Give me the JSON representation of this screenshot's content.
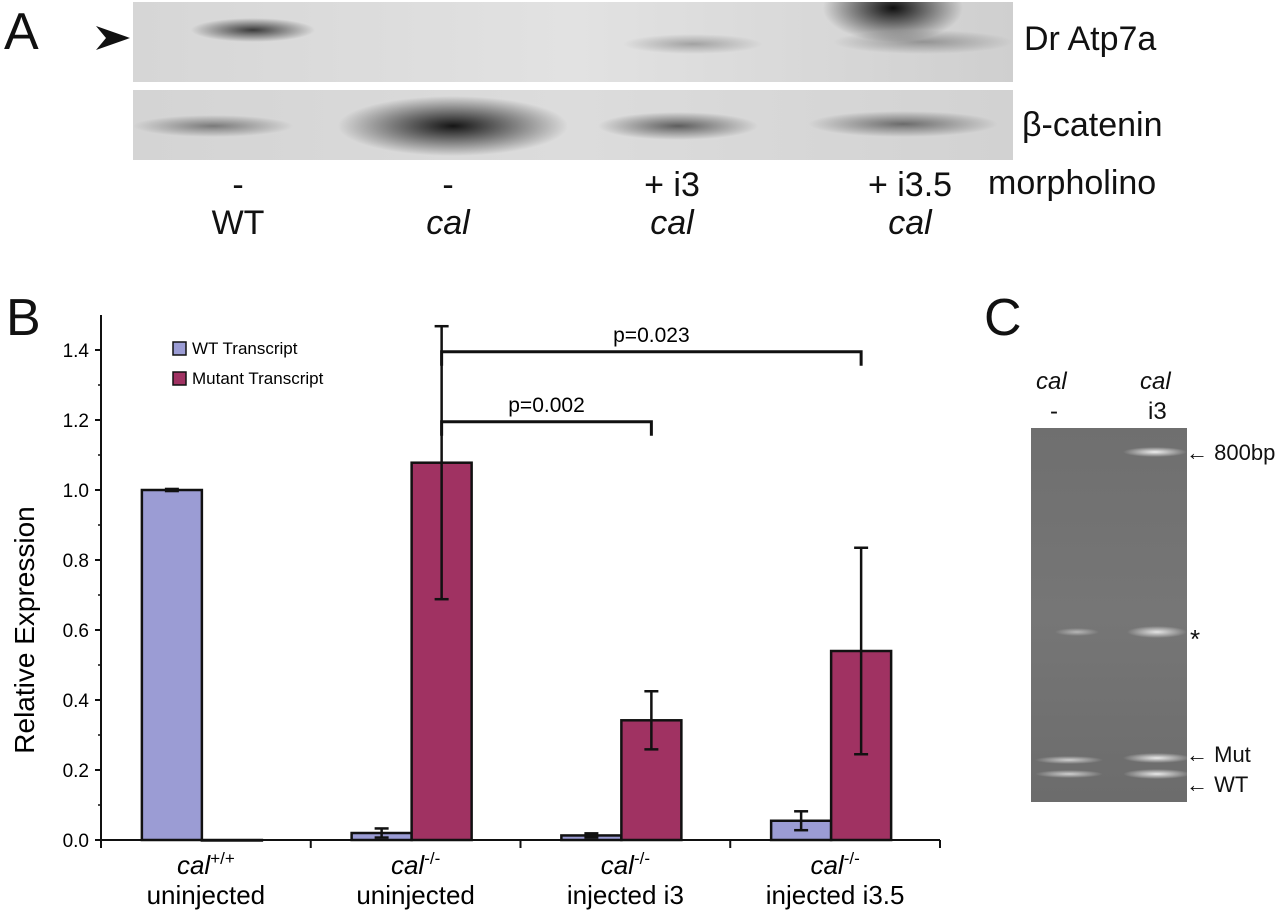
{
  "panels": {
    "a": "A",
    "b": "B",
    "c": "C"
  },
  "panel_a": {
    "blot_labels": [
      "Dr Atp7a",
      "β-catenin"
    ],
    "morpholino_label": "morpholino",
    "lanes": [
      {
        "morpholino": "-",
        "genotype": "WT"
      },
      {
        "morpholino": "-",
        "genotype": "cal"
      },
      {
        "morpholino": "+ i3",
        "genotype": "cal"
      },
      {
        "morpholino": "+ i3.5",
        "genotype": "cal"
      }
    ]
  },
  "panel_c": {
    "lanes": [
      {
        "genotype": "cal",
        "treatment": "-"
      },
      {
        "genotype": "cal",
        "treatment": "i3"
      }
    ],
    "markers": [
      "800bp",
      "*",
      "Mut",
      "WT"
    ]
  },
  "chart_data": {
    "type": "bar",
    "ylabel": "Relative Expression",
    "ylim": [
      0,
      1.5
    ],
    "yticks": [
      "0.0",
      "0.2",
      "0.4",
      "0.6",
      "0.8",
      "1.0",
      "1.2",
      "1.4"
    ],
    "categories": [
      {
        "genotype": "cal",
        "superscript": "+/+",
        "condition": "uninjected"
      },
      {
        "genotype": "cal",
        "superscript": "-/-",
        "condition": "uninjected"
      },
      {
        "genotype": "cal",
        "superscript": "-/-",
        "condition": "injected i3"
      },
      {
        "genotype": "cal",
        "superscript": "-/-",
        "condition": "injected i3.5"
      }
    ],
    "series": [
      {
        "name": "WT Transcript",
        "color": "#9b9cd4",
        "values": [
          1.0,
          0.02,
          0.013,
          0.055
        ],
        "errors": [
          0.003,
          0.013,
          0.006,
          0.027
        ]
      },
      {
        "name": "Mutant Transcript",
        "color": "#a03262",
        "values": [
          0.0,
          1.078,
          0.342,
          0.54
        ],
        "errors": [
          0.0,
          0.39,
          0.083,
          0.295
        ]
      }
    ],
    "comparisons": [
      {
        "label": "p=0.002",
        "from": 1,
        "to": 2
      },
      {
        "label": "p=0.023",
        "from": 1,
        "to": 3
      }
    ]
  }
}
